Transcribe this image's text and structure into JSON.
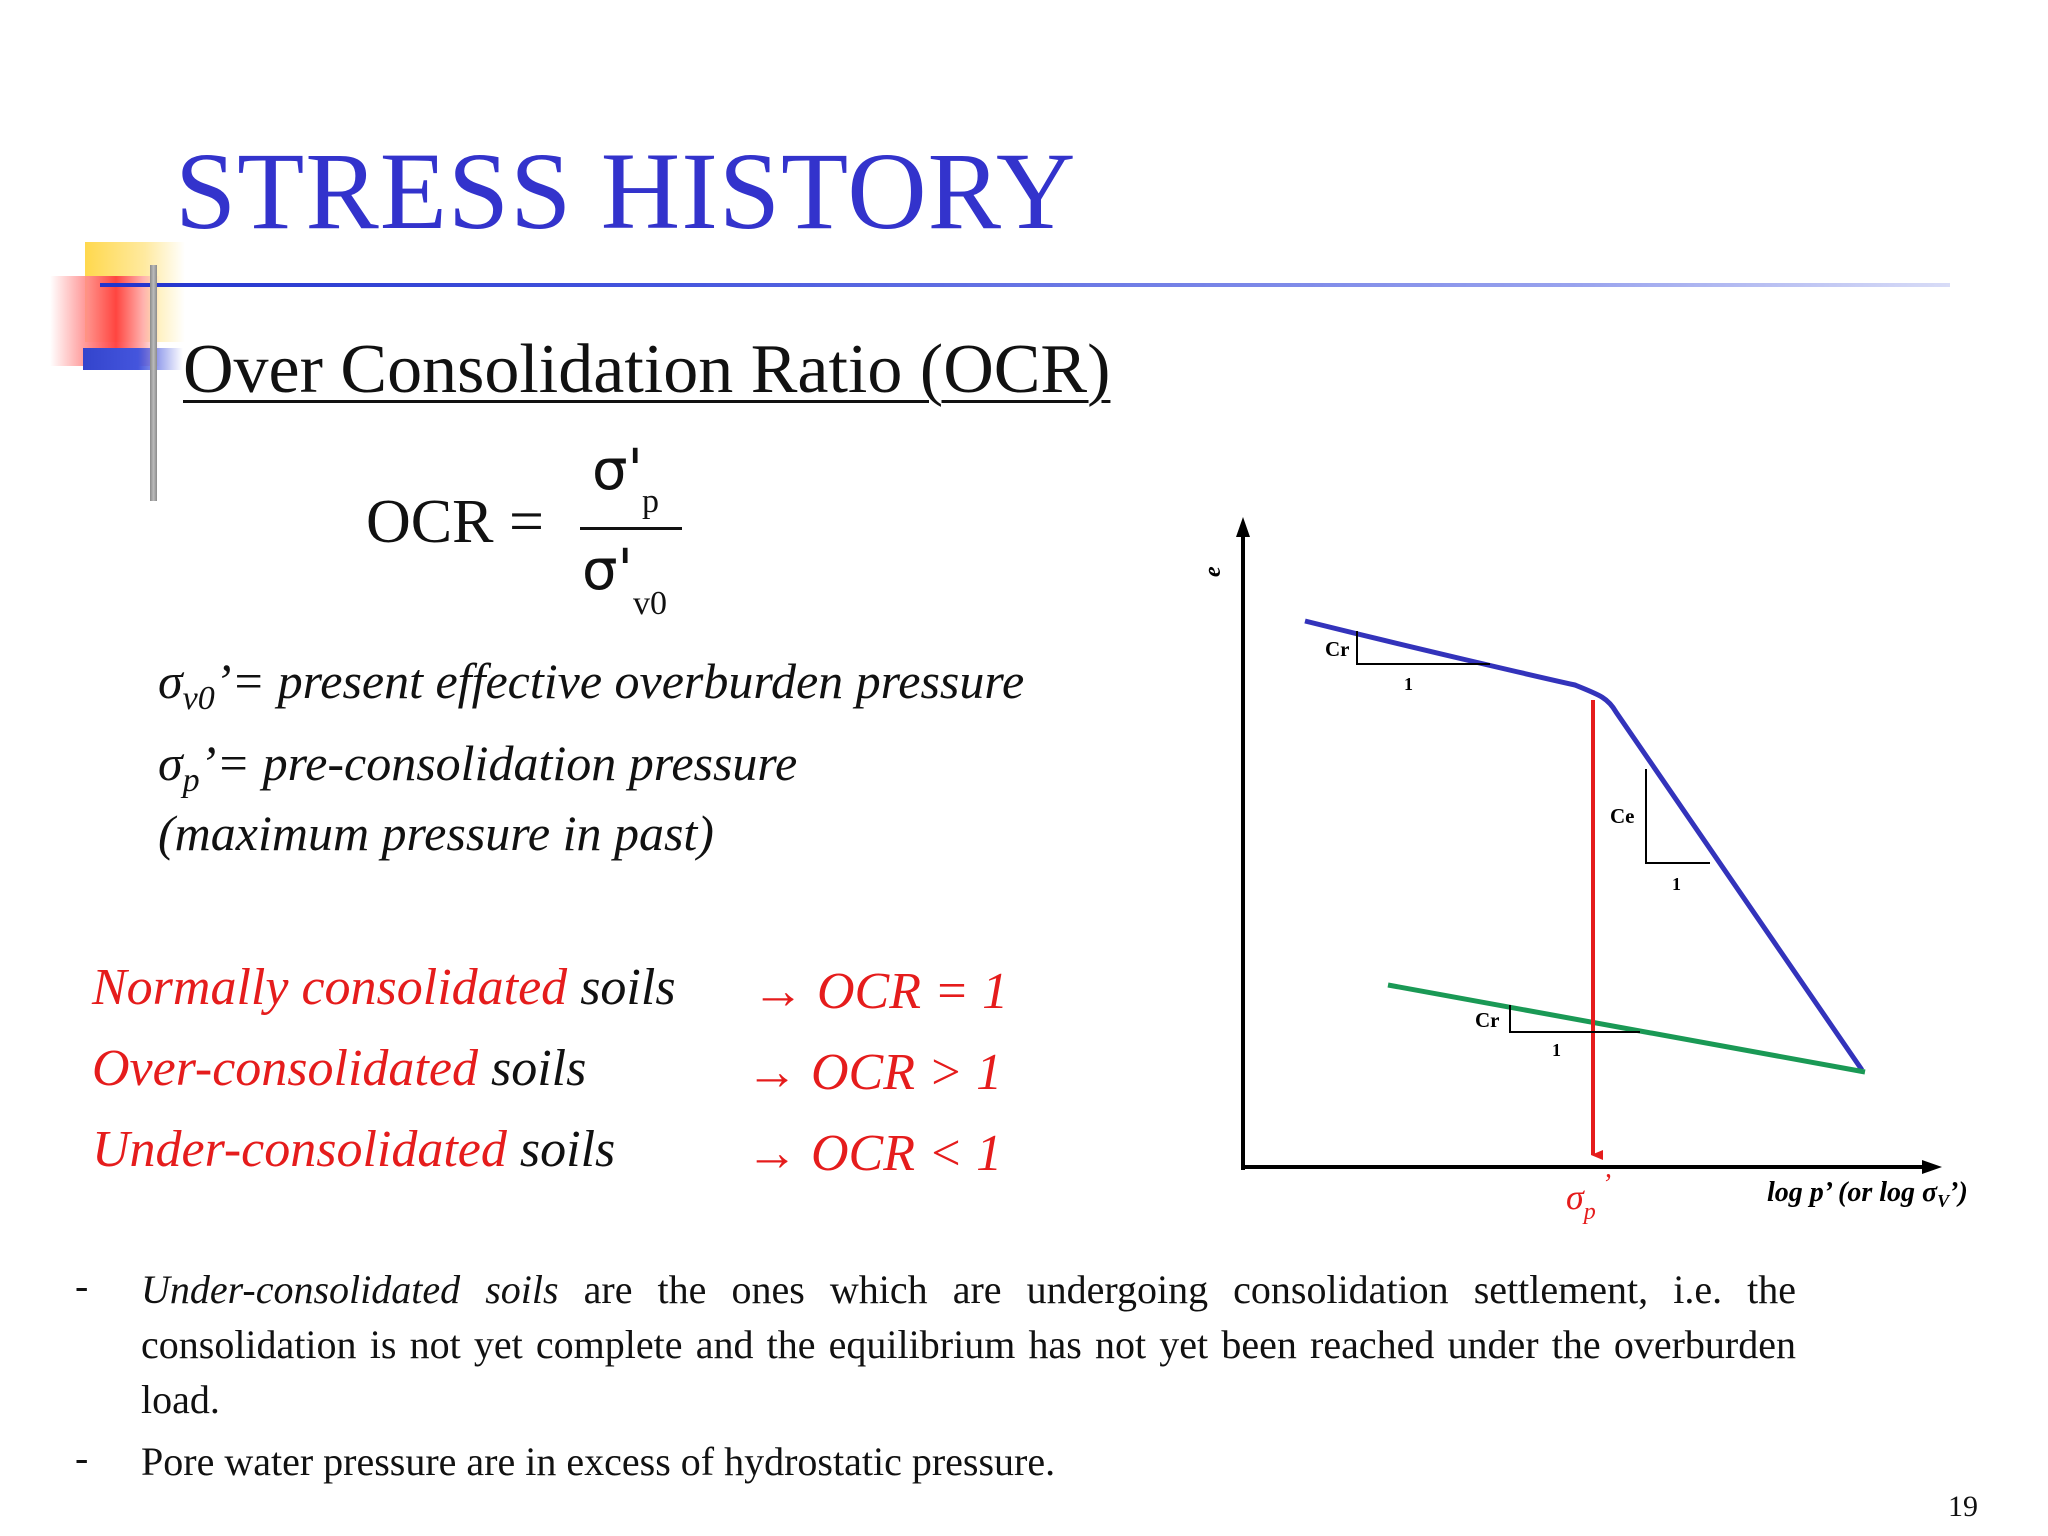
{
  "slide": {
    "title": "STRESS HISTORY",
    "subtitle": "Over Consolidation Ratio (OCR)",
    "page_number": "19"
  },
  "formula": {
    "lhs": "OCR =",
    "numerator_symbol": "σ'",
    "numerator_sub": "p",
    "denominator_symbol": "σ'",
    "denominator_sub": "v0"
  },
  "definitions": [
    {
      "symbol": "σ",
      "sub": "v0",
      "text": "’= present effective overburden pressure"
    },
    {
      "symbol": "σ",
      "sub": "p",
      "text": "’= pre-consolidation pressure"
    },
    {
      "text": "(maximum pressure in past)"
    }
  ],
  "classifications": [
    {
      "term": "Normally consolidated",
      "word": " soils",
      "result": "→ OCR = 1"
    },
    {
      "term": "Over-consolidated",
      "word": " soils",
      "result": "→ OCR > 1"
    },
    {
      "term": "Under-consolidated",
      "word": " soils",
      "result": "→ OCR < 1"
    }
  ],
  "bullets": [
    {
      "dash": "-",
      "italic": "Under-consolidated soils",
      "text": " are the ones which are undergoing consolidation settlement, i.e. the consolidation is not yet complete and the equilibrium has not yet been reached under the overburden load."
    },
    {
      "dash": "-",
      "italic": "",
      "text": "Pore water pressure are in excess of hydrostatic pressure."
    }
  ],
  "figure": {
    "y_axis_label": "e",
    "x_axis_label": "log p’ (or log σ",
    "x_axis_label_sub": "V",
    "x_axis_label_end": "’)",
    "sigma_p_label": "σ",
    "sigma_p_sub": "p",
    "sigma_p_prime": "’",
    "upper_slope_label": "Cr",
    "compression_slope_label": "Ce",
    "lower_slope_label": "Cr",
    "run_label": "1",
    "colors": {
      "virgin_curve": "#3333bb",
      "unload_line": "#1a9955",
      "preconsolidation_marker": "#e51c1c",
      "axes": "#000000"
    }
  }
}
